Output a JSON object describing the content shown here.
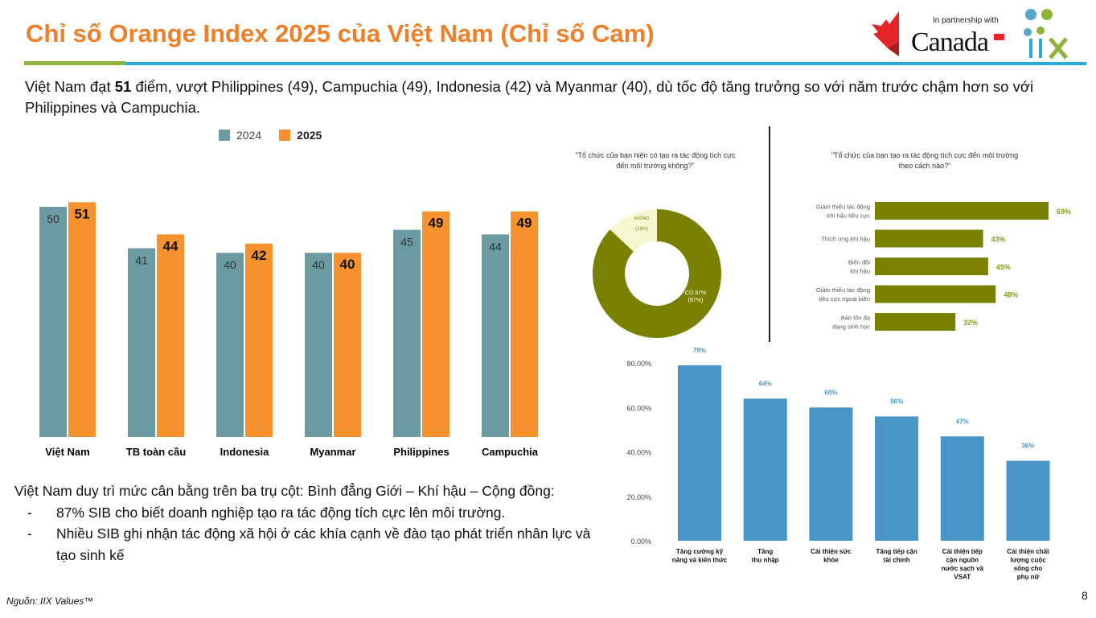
{
  "title": "Chỉ số Orange Index 2025 của Việt Nam (Chỉ số Cam)",
  "logo": {
    "partnership": "In partnership with",
    "canada": "Canada",
    "iix": "IIX"
  },
  "intro": {
    "pre": "Việt Nam đạt ",
    "bold": "51",
    "post": " điểm, vượt Philippines (49), Campuchia (49), Indonesia (42) và Myanmar (40), dù tốc độ tăng trưởng so với năm trước chậm hơn so với Philippines và Campuchia."
  },
  "summary": {
    "lead": "Việt Nam duy trì mức cân bằng trên ba trụ cột: Bình đẳng Giới – Khí hậu – Cộng đồng:",
    "items": [
      {
        "dash": "-",
        "text": "87% SIB cho biết doanh nghiệp tạo ra tác động tích cực lên môi trường."
      },
      {
        "dash": "-",
        "text": "Nhiều SIB ghi nhận tác động xã hội ở các khía cạnh về đào tạo phát triển nhân lực và tạo sinh kế"
      }
    ]
  },
  "source": "Nguồn: IIX Values™",
  "page_number": "8",
  "colors": {
    "orange": "#F7922F",
    "teal": "#6B9AA0",
    "olive": "#7A8000",
    "olive_light": "#F6F7D0",
    "blue": "#4A95C8"
  },
  "chart_data": [
    {
      "type": "bar",
      "title": "",
      "categories": [
        "Việt Nam",
        "TB toàn cầu",
        "Indonesia",
        "Myanmar",
        "Philippines",
        "Campuchia"
      ],
      "series": [
        {
          "name": "2024",
          "values": [
            50,
            41,
            40,
            40,
            45,
            44
          ]
        },
        {
          "name": "2025",
          "values": [
            51,
            44,
            42,
            40,
            49,
            49
          ]
        }
      ],
      "ylim": [
        0,
        55
      ],
      "legend": "top"
    },
    {
      "type": "pie",
      "title": "\"Tổ chức của bạn hiện có tạo ra tác động tích cực đến môi trường không?\"",
      "slices": [
        {
          "label": "CÓ 87%",
          "sub": "(87%)",
          "value": 87
        },
        {
          "label": "KHÔNG",
          "sub": "(13%)",
          "value": 13
        }
      ]
    },
    {
      "type": "bar",
      "orientation": "horizontal",
      "title": "\"Tổ chức của bạn tạo ra tác động tích cực đến môi trường theo cách nào?\"",
      "categories": [
        [
          "Giảm thiểu tác động",
          "khí hậu tiêu cực"
        ],
        [
          "Thích ứng khí hậu"
        ],
        [
          "Biến đổi",
          "khí hậu"
        ],
        [
          "Giảm thiểu tác động",
          "tiêu cực ngoại biên"
        ],
        [
          "Bảo tồn đa",
          "dạng sinh học"
        ]
      ],
      "values": [
        69,
        43,
        45,
        48,
        32
      ],
      "labels": [
        "69%",
        "43%",
        "45%",
        "48%",
        "32%"
      ]
    },
    {
      "type": "bar",
      "categories": [
        [
          "Tăng cường kỹ",
          "năng và kiến thức"
        ],
        [
          "Tăng",
          "thu nhập"
        ],
        [
          "Cải thiện sức",
          "khỏe"
        ],
        [
          "Tăng tiếp cận",
          "tài chính"
        ],
        [
          "Cải thiện tiếp",
          "cận nguồn",
          "nước sạch và",
          "VSAT"
        ],
        [
          "Cải thiện chất",
          "lượng cuộc",
          "sống cho",
          "phụ nữ"
        ]
      ],
      "values": [
        79,
        64,
        60,
        56,
        47,
        36
      ],
      "labels": [
        "79%",
        "64%",
        "60%",
        "56%",
        "47%",
        "36%"
      ],
      "yticks": [
        "0.00%",
        "20.00%",
        "40.00%",
        "60.00%",
        "80.00%"
      ],
      "ylim": [
        0,
        80
      ]
    }
  ]
}
